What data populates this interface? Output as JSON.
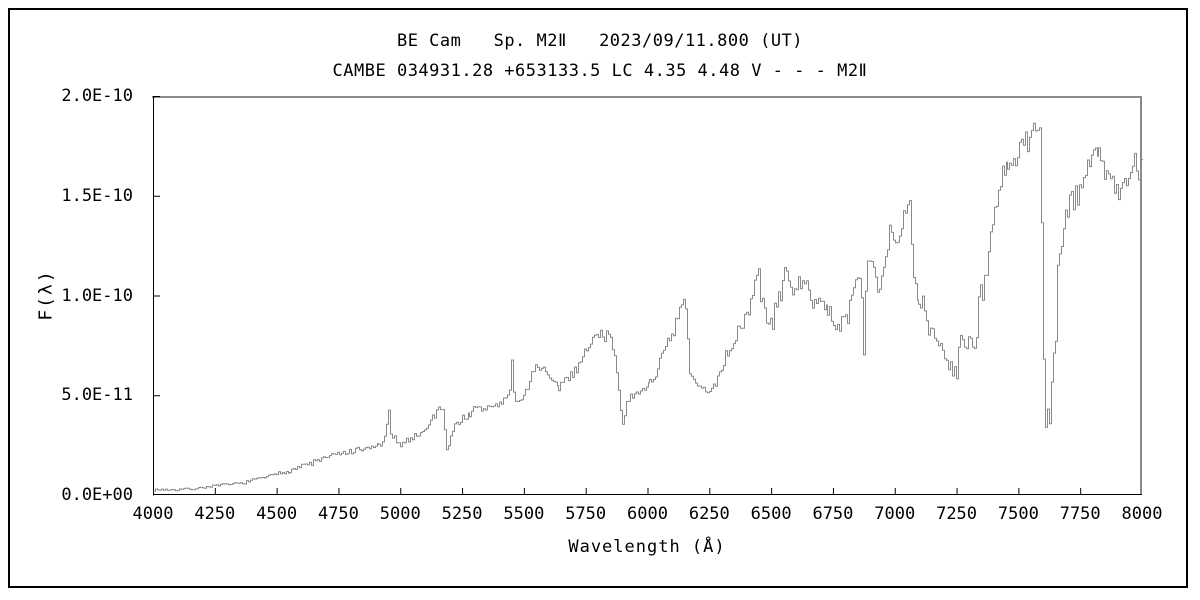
{
  "header": {
    "line1": "BE Cam   Sp. M2Ⅱ   2023/09/11.800 (UT)",
    "line2": "CAMBE 034931.28 +653133.5 LC 4.35 4.48 V - - - M2Ⅱ"
  },
  "chart_data": {
    "type": "line",
    "title": "BE Cam   Sp. M2Ⅱ   2023/09/11.800 (UT)",
    "subtitle": "CAMBE 034931.28 +653133.5 LC 4.35 4.48 V - - - M2Ⅱ",
    "xlabel": "Wavelength (Å)",
    "ylabel": "F(λ)",
    "xlim": [
      4000,
      8000
    ],
    "ylim": [
      0,
      2e-10
    ],
    "grid": false,
    "legend": "none",
    "x_tick_labels": [
      "4000",
      "4250",
      "4500",
      "4750",
      "5000",
      "5250",
      "5500",
      "5750",
      "6000",
      "6250",
      "6500",
      "6750",
      "7000",
      "7250",
      "7500",
      "7750",
      "8000"
    ],
    "y_ticks": [
      {
        "value": 0,
        "label": "0.0E+00"
      },
      {
        "value": 5e-11,
        "label": "5.0E-11"
      },
      {
        "value": 1e-10,
        "label": "1.0E-10"
      },
      {
        "value": 1.5e-10,
        "label": "1.5E-10"
      },
      {
        "value": 2e-10,
        "label": "2.0E-10"
      }
    ],
    "colors": {
      "line": "#8a8a8a",
      "axis": "#000000",
      "frame": "#8a8a8a",
      "background": "#ffffff",
      "text": "#000000"
    },
    "series": [
      {
        "name": "flux_spectrum",
        "flux_scale": 1e-11,
        "control_points": [
          [
            4000,
            0.25
          ],
          [
            4040,
            0.28
          ],
          [
            4080,
            0.25
          ],
          [
            4120,
            0.3
          ],
          [
            4160,
            0.3
          ],
          [
            4200,
            0.38
          ],
          [
            4240,
            0.45
          ],
          [
            4280,
            0.5
          ],
          [
            4320,
            0.55
          ],
          [
            4360,
            0.6
          ],
          [
            4400,
            0.75
          ],
          [
            4450,
            0.9
          ],
          [
            4500,
            1.05
          ],
          [
            4550,
            1.25
          ],
          [
            4600,
            1.45
          ],
          [
            4650,
            1.65
          ],
          [
            4700,
            1.9
          ],
          [
            4750,
            2.05
          ],
          [
            4800,
            2.15
          ],
          [
            4860,
            2.3
          ],
          [
            4910,
            2.5
          ],
          [
            4940,
            2.8
          ],
          [
            4951,
            4.5
          ],
          [
            4960,
            2.9
          ],
          [
            4985,
            2.65
          ],
          [
            5010,
            2.6
          ],
          [
            5040,
            2.85
          ],
          [
            5070,
            3.05
          ],
          [
            5100,
            3.3
          ],
          [
            5130,
            3.9
          ],
          [
            5155,
            4.5
          ],
          [
            5168,
            4.3
          ],
          [
            5176,
            3.3
          ],
          [
            5184,
            2.3
          ],
          [
            5196,
            2.9
          ],
          [
            5212,
            3.3
          ],
          [
            5236,
            3.7
          ],
          [
            5265,
            4.0
          ],
          [
            5295,
            4.2
          ],
          [
            5325,
            4.3
          ],
          [
            5360,
            4.4
          ],
          [
            5395,
            4.55
          ],
          [
            5425,
            4.8
          ],
          [
            5442,
            5.3
          ],
          [
            5449,
            6.9
          ],
          [
            5458,
            4.8
          ],
          [
            5472,
            4.5
          ],
          [
            5496,
            5.1
          ],
          [
            5520,
            5.7
          ],
          [
            5546,
            6.6
          ],
          [
            5568,
            6.3
          ],
          [
            5598,
            5.8
          ],
          [
            5628,
            5.3
          ],
          [
            5658,
            5.7
          ],
          [
            5694,
            6.1
          ],
          [
            5728,
            6.8
          ],
          [
            5762,
            7.4
          ],
          [
            5790,
            8.1
          ],
          [
            5812,
            8.3
          ],
          [
            5832,
            7.8
          ],
          [
            5850,
            8.0
          ],
          [
            5866,
            6.9
          ],
          [
            5880,
            5.5
          ],
          [
            5894,
            3.5
          ],
          [
            5908,
            4.4
          ],
          [
            5926,
            4.7
          ],
          [
            5950,
            4.9
          ],
          [
            5976,
            5.3
          ],
          [
            6002,
            5.6
          ],
          [
            6030,
            6.1
          ],
          [
            6058,
            6.9
          ],
          [
            6088,
            7.6
          ],
          [
            6114,
            8.6
          ],
          [
            6134,
            9.2
          ],
          [
            6150,
            9.6
          ],
          [
            6157,
            9.0
          ],
          [
            6164,
            6.1
          ],
          [
            6186,
            5.6
          ],
          [
            6214,
            5.4
          ],
          [
            6240,
            5.1
          ],
          [
            6264,
            5.5
          ],
          [
            6290,
            6.2
          ],
          [
            6316,
            7.0
          ],
          [
            6344,
            7.8
          ],
          [
            6374,
            8.4
          ],
          [
            6404,
            9.3
          ],
          [
            6430,
            10.2
          ],
          [
            6448,
            11.0
          ],
          [
            6464,
            9.9
          ],
          [
            6484,
            8.2
          ],
          [
            6502,
            8.7
          ],
          [
            6522,
            9.6
          ],
          [
            6542,
            10.6
          ],
          [
            6562,
            11.1
          ],
          [
            6584,
            10.5
          ],
          [
            6606,
            10.3
          ],
          [
            6630,
            10.4
          ],
          [
            6660,
            10.0
          ],
          [
            6694,
            9.7
          ],
          [
            6728,
            9.1
          ],
          [
            6762,
            8.5
          ],
          [
            6798,
            8.8
          ],
          [
            6824,
            9.8
          ],
          [
            6846,
            11.0
          ],
          [
            6860,
            11.5
          ],
          [
            6868,
            8.2
          ],
          [
            6874,
            7.0
          ],
          [
            6882,
            10.8
          ],
          [
            6894,
            11.7
          ],
          [
            6912,
            11.3
          ],
          [
            6932,
            10.5
          ],
          [
            6954,
            11.6
          ],
          [
            6974,
            13.6
          ],
          [
            6992,
            12.9
          ],
          [
            7008,
            12.6
          ],
          [
            7028,
            13.4
          ],
          [
            7046,
            14.4
          ],
          [
            7058,
            14.0
          ],
          [
            7068,
            11.6
          ],
          [
            7080,
            10.0
          ],
          [
            7100,
            9.7
          ],
          [
            7120,
            9.0
          ],
          [
            7142,
            8.4
          ],
          [
            7164,
            7.8
          ],
          [
            7188,
            7.3
          ],
          [
            7212,
            6.8
          ],
          [
            7232,
            6.3
          ],
          [
            7247,
            5.8
          ],
          [
            7260,
            8.3
          ],
          [
            7274,
            7.2
          ],
          [
            7290,
            7.6
          ],
          [
            7308,
            7.9
          ],
          [
            7328,
            8.7
          ],
          [
            7346,
            9.8
          ],
          [
            7364,
            11.0
          ],
          [
            7384,
            12.8
          ],
          [
            7404,
            14.2
          ],
          [
            7424,
            15.4
          ],
          [
            7446,
            16.3
          ],
          [
            7468,
            16.6
          ],
          [
            7490,
            16.9
          ],
          [
            7514,
            17.3
          ],
          [
            7536,
            17.6
          ],
          [
            7556,
            18.0
          ],
          [
            7570,
            18.6
          ],
          [
            7581,
            18.8
          ],
          [
            7588,
            17.6
          ],
          [
            7595,
            11.5
          ],
          [
            7602,
            5.3
          ],
          [
            7610,
            2.7
          ],
          [
            7617,
            5.0
          ],
          [
            7625,
            3.2
          ],
          [
            7635,
            7.0
          ],
          [
            7647,
            7.6
          ],
          [
            7657,
            11.5
          ],
          [
            7671,
            12.6
          ],
          [
            7689,
            13.9
          ],
          [
            7711,
            14.5
          ],
          [
            7735,
            15.2
          ],
          [
            7759,
            15.9
          ],
          [
            7784,
            16.5
          ],
          [
            7811,
            17.5
          ],
          [
            7837,
            16.8
          ],
          [
            7861,
            16.1
          ],
          [
            7887,
            15.6
          ],
          [
            7911,
            14.9
          ],
          [
            7935,
            15.6
          ],
          [
            7957,
            16.4
          ],
          [
            7979,
            16.1
          ],
          [
            8000,
            16.8
          ]
        ]
      }
    ],
    "noise": {
      "seed": 7,
      "step_angstrom": 8,
      "base_amplitude": 0.1,
      "flux_slope": 0.055,
      "regions": [
        [
          4000,
          4500,
          0.6
        ],
        [
          5170,
          5230,
          1.7
        ],
        [
          6100,
          6160,
          1.3
        ],
        [
          6440,
          6510,
          1.6
        ],
        [
          7070,
          7250,
          1.3
        ],
        [
          7250,
          7370,
          2.3
        ],
        [
          7595,
          7655,
          1.5
        ]
      ]
    }
  }
}
